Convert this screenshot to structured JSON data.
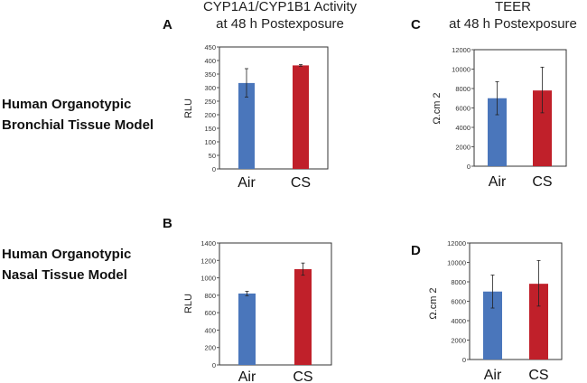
{
  "row_labels": [
    {
      "line1": "Human Organotypic",
      "line2": "Bronchial Tissue Model"
    },
    {
      "line1": "Human Organotypic",
      "line2": "Nasal Tissue Model"
    }
  ],
  "column_titles": [
    {
      "line1": "CYP1A1/CYP1B1 Activity",
      "line2": "at 48 h Postexposure"
    },
    {
      "line1": "TEER",
      "line2": "at 48 h Postexposure"
    }
  ],
  "colors": {
    "air": "#4a76bb",
    "cs": "#c0202a"
  },
  "chart_data": [
    {
      "panel": "A",
      "type": "bar",
      "ylabel": "RLU",
      "ylim": [
        0,
        450
      ],
      "ticks": [
        0,
        50,
        100,
        150,
        200,
        250,
        300,
        350,
        400,
        450
      ],
      "categories": [
        "Air",
        "CS"
      ],
      "values": [
        317,
        382
      ],
      "errors": [
        [
          265,
          370
        ],
        [
          379,
          385
        ]
      ]
    },
    {
      "panel": "B",
      "type": "bar",
      "ylabel": "RLU",
      "ylim": [
        0,
        1400
      ],
      "ticks": [
        0,
        200,
        400,
        600,
        800,
        1000,
        1200,
        1400
      ],
      "categories": [
        "Air",
        "CS"
      ],
      "values": [
        820,
        1100
      ],
      "errors": [
        [
          795,
          845
        ],
        [
          1030,
          1170
        ]
      ]
    },
    {
      "panel": "C",
      "type": "bar",
      "ylabel": "Ω.cm 2",
      "ylim": [
        0,
        12000
      ],
      "ticks": [
        0,
        2000,
        4000,
        6000,
        8000,
        10000,
        12000
      ],
      "categories": [
        "Air",
        "CS"
      ],
      "values": [
        7000,
        7800
      ],
      "errors": [
        [
          5300,
          8700
        ],
        [
          5500,
          10200
        ]
      ]
    },
    {
      "panel": "D",
      "type": "bar",
      "ylabel": "Ω.cm 2",
      "ylim": [
        0,
        12000
      ],
      "ticks": [
        0,
        2000,
        4000,
        6000,
        8000,
        10000,
        12000
      ],
      "categories": [
        "Air",
        "CS"
      ],
      "values": [
        7000,
        7800
      ],
      "errors": [
        [
          5300,
          8700
        ],
        [
          5500,
          10200
        ]
      ]
    }
  ]
}
